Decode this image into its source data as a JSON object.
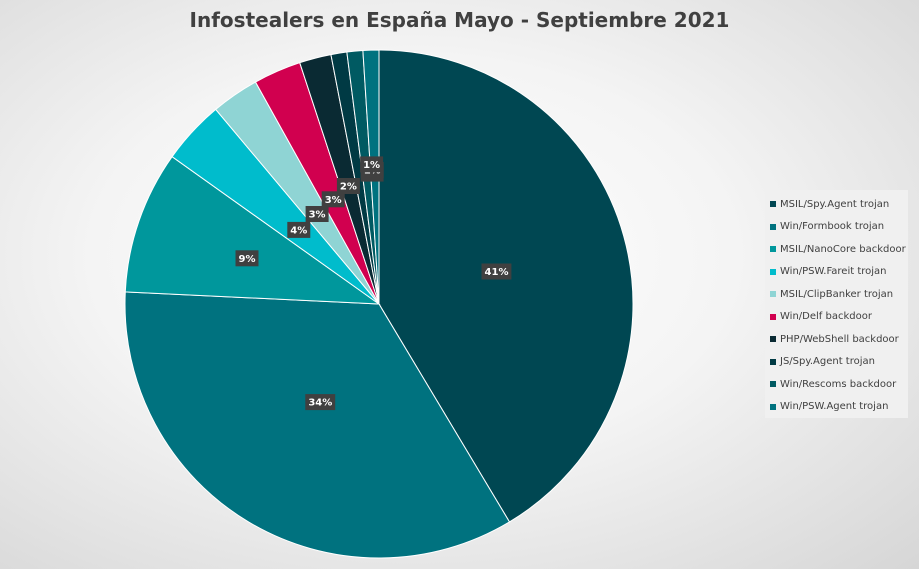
{
  "chart_data": {
    "type": "pie",
    "title": "Infostealers en España Mayo - Septiembre 2021",
    "start_angle": "12 o'clock, clockwise",
    "legend_position": "right",
    "slices": [
      {
        "name": "MSIL/Spy.Agent trojan",
        "value": 41,
        "label": "41%",
        "color": "#004752"
      },
      {
        "name": "Win/Formbook trojan",
        "value": 34,
        "label": "34%",
        "color": "#00727f"
      },
      {
        "name": "MSIL/NanoCore backdoor",
        "value": 9,
        "label": "9%",
        "color": "#00979c"
      },
      {
        "name": "Win/PSW.Fareit trojan",
        "value": 4,
        "label": "4%",
        "color": "#00bccc"
      },
      {
        "name": "MSIL/ClipBanker trojan",
        "value": 3,
        "label": "3%",
        "color": "#8fd4d4"
      },
      {
        "name": "Win/Delf backdoor",
        "value": 3,
        "label": "3%",
        "color": "#d1004f"
      },
      {
        "name": "PHP/WebShell backdoor",
        "value": 2,
        "label": "2%",
        "color": "#0a2a33"
      },
      {
        "name": "JS/Spy.Agent trojan",
        "value": 1,
        "label": "1%",
        "color": "#003a44"
      },
      {
        "name": "Win/Rescoms backdoor",
        "value": 1,
        "label": "1%",
        "color": "#005a62"
      },
      {
        "name": "Win/PSW.Agent trojan",
        "value": 1,
        "label": "1%",
        "color": "#00727f"
      }
    ]
  }
}
